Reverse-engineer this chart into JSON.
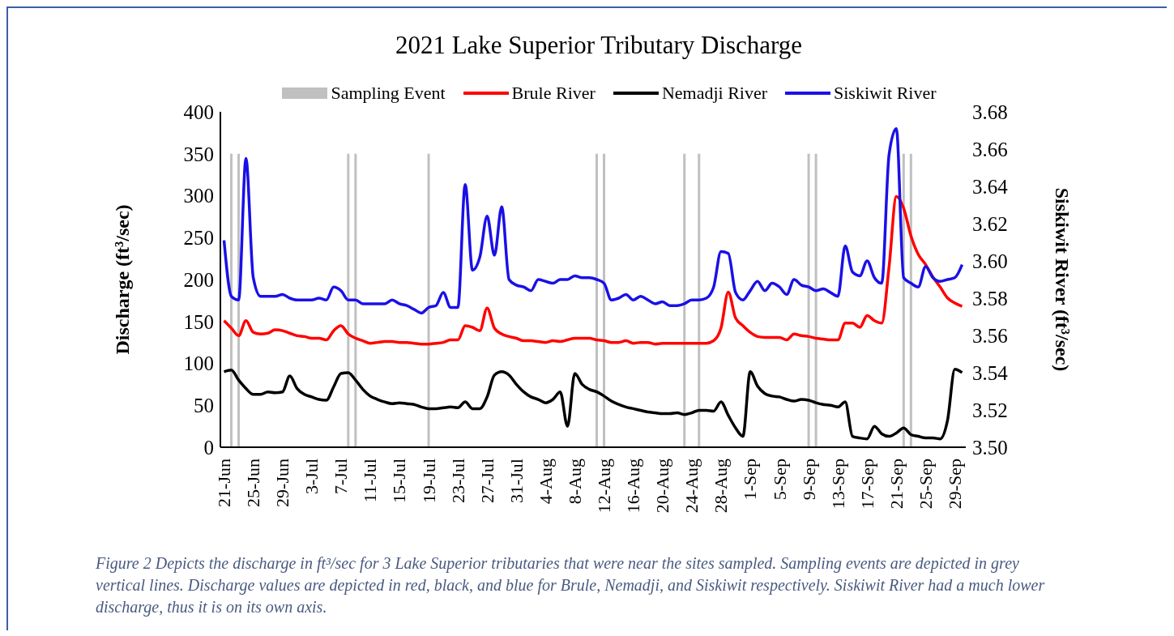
{
  "chart_data": {
    "type": "line",
    "title": "2021 Lake Superior Tributary Discharge",
    "ylabel": "Discharge (ft³/sec)",
    "y2label": "Siskiwit River (ft³/sec)",
    "categories": [
      "21-Jun",
      null,
      null,
      null,
      "25-Jun",
      null,
      null,
      null,
      "29-Jun",
      null,
      null,
      null,
      "3-Jul",
      null,
      null,
      null,
      "7-Jul",
      null,
      null,
      null,
      "11-Jul",
      null,
      null,
      null,
      "15-Jul",
      null,
      null,
      null,
      "19-Jul",
      null,
      null,
      null,
      "23-Jul",
      null,
      null,
      null,
      "27-Jul",
      null,
      null,
      null,
      "31-Jul",
      null,
      null,
      null,
      "4-Aug",
      null,
      null,
      null,
      "8-Aug",
      null,
      null,
      null,
      "12-Aug",
      null,
      null,
      null,
      "16-Aug",
      null,
      null,
      null,
      "20-Aug",
      null,
      null,
      null,
      "24-Aug",
      null,
      null,
      null,
      "28-Aug",
      null,
      null,
      null,
      "1-Sep",
      null,
      null,
      null,
      "5-Sep",
      null,
      null,
      null,
      "9-Sep",
      null,
      null,
      null,
      "13-Sep",
      null,
      null,
      null,
      "17-Sep",
      null,
      null,
      null,
      "21-Sep",
      null,
      null,
      null,
      "25-Sep",
      null,
      null,
      null,
      "29-Sep",
      null
    ],
    "series": [
      {
        "name": "Sampling Event",
        "type": "bar",
        "color": "#c0c0c0",
        "values": [
          null,
          350,
          350,
          null,
          null,
          null,
          null,
          null,
          null,
          null,
          null,
          null,
          null,
          null,
          null,
          null,
          null,
          350,
          350,
          null,
          null,
          null,
          null,
          null,
          null,
          null,
          null,
          null,
          350,
          null,
          null,
          null,
          null,
          null,
          null,
          null,
          null,
          null,
          null,
          null,
          null,
          null,
          null,
          null,
          null,
          null,
          null,
          null,
          null,
          null,
          null,
          350,
          350,
          null,
          null,
          null,
          null,
          null,
          null,
          null,
          null,
          null,
          null,
          350,
          null,
          350,
          null,
          null,
          null,
          null,
          null,
          null,
          null,
          null,
          null,
          null,
          null,
          null,
          null,
          null,
          350,
          350,
          null,
          null,
          null,
          null,
          null,
          null,
          null,
          null,
          null,
          null,
          null,
          350,
          350,
          null,
          null,
          null,
          null,
          null,
          null,
          null
        ]
      },
      {
        "name": "Brule River",
        "color": "#ff0000",
        "values": [
          151,
          142,
          133,
          151,
          137,
          135,
          136,
          140,
          139,
          136,
          133,
          132,
          130,
          130,
          128,
          139,
          145,
          135,
          130,
          127,
          124,
          125,
          126,
          126,
          125,
          125,
          124,
          123,
          123,
          124,
          125,
          128,
          128,
          145,
          143,
          139,
          166,
          142,
          135,
          132,
          130,
          127,
          127,
          126,
          125,
          127,
          126,
          128,
          130,
          130,
          130,
          128,
          127,
          125,
          125,
          127,
          124,
          125,
          125,
          123,
          124,
          124,
          124,
          124,
          124,
          124,
          124,
          127,
          142,
          185,
          154,
          145,
          137,
          132,
          131,
          131,
          131,
          128,
          135,
          133,
          132,
          130,
          129,
          128,
          128,
          148,
          148,
          143,
          157,
          151,
          148,
          215,
          299,
          285,
          252,
          230,
          218,
          203,
          191,
          178,
          172,
          168
        ]
      },
      {
        "name": "Nemadji River",
        "color": "#000000",
        "values": [
          90,
          92,
          80,
          70,
          63,
          63,
          66,
          65,
          66,
          85,
          70,
          63,
          60,
          57,
          56,
          72,
          88,
          89,
          80,
          69,
          61,
          57,
          54,
          52,
          53,
          52,
          51,
          48,
          46,
          46,
          47,
          48,
          47,
          54,
          46,
          46,
          60,
          86,
          90,
          86,
          75,
          66,
          60,
          57,
          53,
          57,
          66,
          25,
          88,
          75,
          69,
          66,
          61,
          55,
          51,
          48,
          46,
          44,
          42,
          41,
          40,
          40,
          41,
          39,
          41,
          44,
          44,
          43,
          54,
          38,
          23,
          13,
          90,
          73,
          64,
          61,
          60,
          57,
          55,
          57,
          56,
          53,
          51,
          50,
          48,
          54,
          13,
          11,
          10,
          25,
          16,
          13,
          17,
          23,
          15,
          13,
          11,
          11,
          10,
          32,
          93,
          89
        ]
      },
      {
        "name": "Siskiwit River",
        "axis": "y2",
        "color": "#1a10e6",
        "values": [
          3.611,
          3.581,
          3.579,
          3.655,
          3.591,
          3.581,
          3.581,
          3.581,
          3.582,
          3.58,
          3.579,
          3.579,
          3.579,
          3.58,
          3.579,
          3.586,
          3.584,
          3.579,
          3.579,
          3.577,
          3.577,
          3.577,
          3.577,
          3.579,
          3.577,
          3.576,
          3.574,
          3.572,
          3.575,
          3.576,
          3.583,
          3.575,
          3.575,
          3.641,
          3.595,
          3.602,
          3.624,
          3.603,
          3.629,
          3.59,
          3.587,
          3.586,
          3.584,
          3.59,
          3.589,
          3.588,
          3.59,
          3.59,
          3.592,
          3.591,
          3.591,
          3.59,
          3.588,
          3.579,
          3.58,
          3.582,
          3.579,
          3.581,
          3.579,
          3.577,
          3.578,
          3.576,
          3.576,
          3.577,
          3.579,
          3.579,
          3.58,
          3.586,
          3.605,
          3.604,
          3.583,
          3.579,
          3.584,
          3.589,
          3.584,
          3.588,
          3.586,
          3.582,
          3.59,
          3.587,
          3.586,
          3.584,
          3.585,
          3.583,
          3.581,
          3.608,
          3.594,
          3.592,
          3.6,
          3.591,
          3.588,
          3.657,
          3.671,
          3.591,
          3.588,
          3.586,
          3.597,
          3.591,
          3.589,
          3.59,
          3.591,
          3.598
        ]
      }
    ],
    "ylim": [
      0,
      400
    ],
    "yticks": [
      0,
      50,
      100,
      150,
      200,
      250,
      300,
      350,
      400
    ],
    "y2lim": [
      3.5,
      3.68
    ],
    "y2ticks": [
      {
        "value": 3.5,
        "label": "3.50"
      },
      {
        "value": 3.52,
        "label": "3.52"
      },
      {
        "value": 3.54,
        "label": "3.54"
      },
      {
        "value": 3.56,
        "label": "3.56"
      },
      {
        "value": 3.58,
        "label": "3.58"
      },
      {
        "value": 3.6,
        "label": "3.60"
      },
      {
        "value": 3.62,
        "label": "3.62"
      },
      {
        "value": 3.64,
        "label": "3.64"
      },
      {
        "value": 3.66,
        "label": "3.66"
      },
      {
        "value": 3.68,
        "label": "3.68"
      }
    ],
    "grid": false,
    "legend": "top",
    "marker": "none",
    "line_style": "solid",
    "annotations": [
      "Figure 2 Depicts the discharge in ft³/sec for 3 Lake Superior tributaries that were near the  sites sampled. Sampling events are depicted in grey vertical lines. Discharge values are depicted in red, black, and blue for Brule, Nemadji, and Siskiwit respectively. Siskiwit River had a much lower discharge, thus it is on its own axis."
    ]
  }
}
